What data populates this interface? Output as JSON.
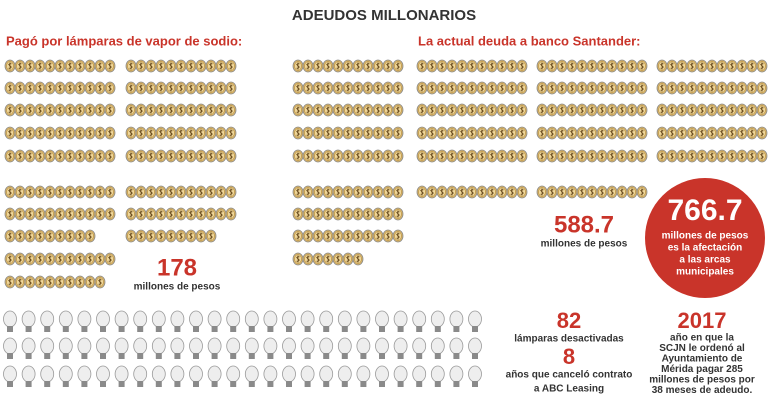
{
  "title": "ADEUDOS MILLONARIOS",
  "left": {
    "heading": "Pagó por lámparas de vapor de sodio:",
    "amount": "178",
    "unit": "millones de pesos"
  },
  "right": {
    "heading": "La actual deuda a banco Santander:",
    "amount": "588.7",
    "unit": "millones de pesos"
  },
  "impact": {
    "amount": "766.7",
    "lines": [
      "millones de pesos",
      "es la afectación",
      "a las arcas",
      "municipales"
    ]
  },
  "lamps": {
    "amount": "82",
    "label": "lámparas desactivadas"
  },
  "contract": {
    "amount": "8",
    "lines": [
      "años que canceló contrato",
      "a ABC Leasing"
    ]
  },
  "ruling": {
    "year": "2017",
    "lines": [
      "año en que la",
      "SCJN le ordenó al",
      "Ayuntamiento de",
      "Mérida pagar 285",
      "millones de pesos por",
      "38 meses de adeudo."
    ]
  }
}
